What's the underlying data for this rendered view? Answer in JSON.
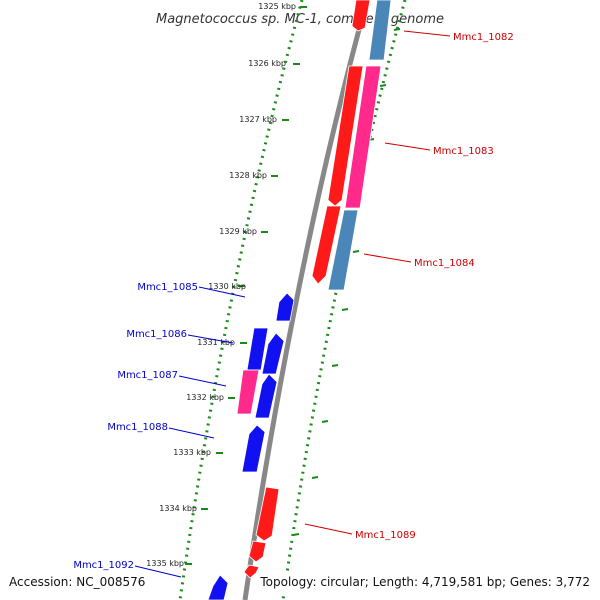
{
  "title": "Magnetococcus sp. MC-1, complete genome",
  "footer": {
    "accession": "Accession: NC_008576",
    "topology": "Topology: circular; Length: 4,719,581 bp; Genes: 3,772"
  },
  "colors": {
    "backbone": "#888888",
    "ruler": "#1a8a1a",
    "red": "#ff1a1a",
    "pink": "#ff2a8c",
    "steel": "#4a86b8",
    "blue": "#1010f0",
    "label_red": "#cc0000",
    "label_blue": "#0000cc"
  },
  "ruler": {
    "ticks": [
      "1325 kbp",
      "1326 kbp",
      "1327 kbp",
      "1328 kbp",
      "1329 kbp",
      "1330 kbp",
      "1331 kbp",
      "1332 kbp",
      "1333 kbp",
      "1334 kbp",
      "1335 kbp"
    ]
  },
  "genes": [
    {
      "label": "Mmc1_1082",
      "strand": "forward"
    },
    {
      "label": "Mmc1_1083",
      "strand": "forward"
    },
    {
      "label": "Mmc1_1084",
      "strand": "forward"
    },
    {
      "label": "Mmc1_1085",
      "strand": "reverse"
    },
    {
      "label": "Mmc1_1086",
      "strand": "reverse"
    },
    {
      "label": "Mmc1_1087",
      "strand": "reverse"
    },
    {
      "label": "Mmc1_1088",
      "strand": "reverse"
    },
    {
      "label": "Mmc1_1089",
      "strand": "forward"
    },
    {
      "label": "Mmc1_1092",
      "strand": "reverse"
    }
  ]
}
